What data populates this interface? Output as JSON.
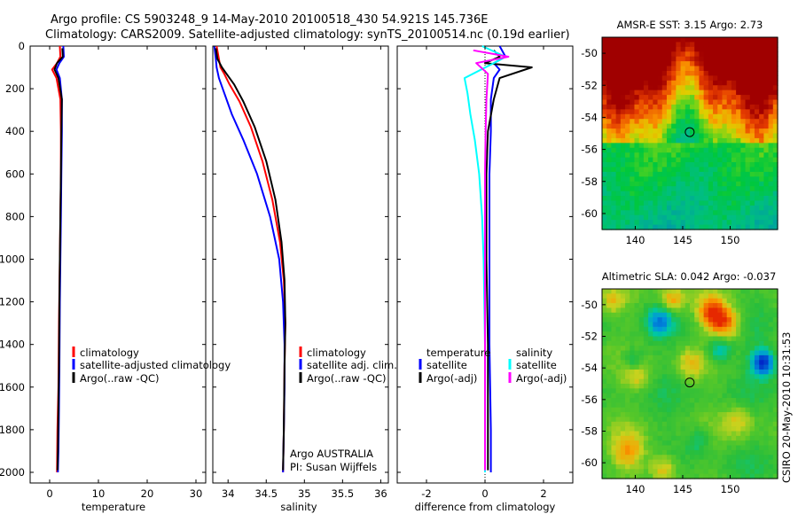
{
  "title": {
    "line1": "Argo profile: CS 5903248_9 14-May-2010 20100518_430 54.921S 145.736E",
    "line2": "Climatology: CARS2009. Satellite-adjusted climatology: synTS_20100514.nc (0.19d earlier)"
  },
  "side_stamp": "CSIRO 20-May-2010 10:31:53",
  "chart_data": [
    {
      "type": "line",
      "id": "temperature",
      "xlabel": "temperature",
      "ylabel": "",
      "xlim": [
        -4,
        32
      ],
      "ylim": [
        2050,
        0
      ],
      "x_ticks": [
        0,
        10,
        20,
        30
      ],
      "y_ticks": [
        0,
        200,
        400,
        600,
        800,
        1000,
        1200,
        1400,
        1600,
        1800,
        2000
      ],
      "legend": [
        "climatology",
        "satellite-adjusted climatology",
        "Argo(..raw -QC)"
      ],
      "series": [
        {
          "name": "climatology",
          "color": "#ff0000",
          "x": [
            2.1,
            2.2,
            1.5,
            0.5,
            1.4,
            2.2,
            2.3,
            2.3,
            2.2,
            2.1,
            1.9,
            1.8,
            1.6,
            1.5
          ],
          "y": [
            0,
            50,
            80,
            110,
            150,
            250,
            400,
            600,
            800,
            1000,
            1300,
            1600,
            1800,
            2000
          ]
        },
        {
          "name": "satellite-adjusted climatology",
          "color": "#0000ff",
          "x": [
            2.8,
            2.9,
            2.0,
            1.4,
            2.1,
            2.5,
            2.5,
            2.4,
            2.3,
            2.2,
            2.1,
            2.0,
            1.9,
            1.8,
            1.7
          ],
          "y": [
            0,
            50,
            80,
            110,
            150,
            250,
            400,
            600,
            800,
            1000,
            1200,
            1500,
            1700,
            1900,
            2000
          ]
        },
        {
          "name": "Argo(..raw -QC)",
          "color": "#000000",
          "x": [
            2.6,
            2.7,
            1.5,
            1.0,
            1.8,
            2.5,
            2.4,
            2.3,
            2.2,
            2.1,
            2.0,
            1.9,
            1.8,
            1.7,
            1.6
          ],
          "y": [
            10,
            50,
            80,
            110,
            150,
            250,
            400,
            600,
            800,
            1000,
            1200,
            1500,
            1700,
            1900,
            1990
          ]
        }
      ]
    },
    {
      "type": "line",
      "id": "salinity",
      "xlabel": "salinity",
      "ylabel": "",
      "xlim": [
        33.8,
        36.1
      ],
      "ylim": [
        2050,
        0
      ],
      "x_ticks": [
        "34",
        "34.5",
        "35",
        "35.5",
        "36"
      ],
      "legend": [
        "climatology",
        "satellite adj. clim.",
        "Argo(..raw -QC)"
      ],
      "annotation": [
        "Argo AUSTRALIA",
        "PI: Susan Wijffels"
      ],
      "series": [
        {
          "name": "climatology",
          "color": "#ff0000",
          "x": [
            33.85,
            33.88,
            33.9,
            33.95,
            34.02,
            34.15,
            34.3,
            34.45,
            34.58,
            34.68,
            34.73,
            34.75,
            34.74,
            34.73,
            34.72
          ],
          "y": [
            0,
            60,
            100,
            130,
            180,
            260,
            380,
            540,
            720,
            920,
            1100,
            1300,
            1500,
            1800,
            2000
          ]
        },
        {
          "name": "satellite adj. clim.",
          "color": "#0000ff",
          "x": [
            33.82,
            33.84,
            33.85,
            33.88,
            33.95,
            34.05,
            34.2,
            34.38,
            34.55,
            34.67,
            34.72,
            34.74,
            34.74,
            34.73,
            34.72
          ],
          "y": [
            0,
            60,
            100,
            150,
            220,
            320,
            440,
            600,
            800,
            1000,
            1200,
            1400,
            1600,
            1800,
            2000
          ]
        },
        {
          "name": "Argo(..raw -QC)",
          "color": "#000000",
          "x": [
            33.84,
            33.86,
            33.92,
            33.98,
            34.08,
            34.2,
            34.35,
            34.5,
            34.62,
            34.7,
            34.74,
            34.75,
            34.74,
            34.73,
            34.72
          ],
          "y": [
            10,
            60,
            100,
            130,
            180,
            260,
            380,
            540,
            720,
            920,
            1100,
            1300,
            1500,
            1800,
            1990
          ]
        }
      ]
    },
    {
      "type": "line",
      "id": "difference",
      "xlabel": "difference from climatology",
      "ylabel": "",
      "xlim": [
        -3,
        3
      ],
      "ylim": [
        2050,
        0
      ],
      "x_ticks": [
        -2,
        0,
        2
      ],
      "legend_groups": [
        {
          "title": "temperature",
          "entries": [
            "satellite",
            "Argo(-adj)"
          ]
        },
        {
          "title": "salinity",
          "entries": [
            "satellite",
            "Argo(-adj)"
          ]
        }
      ],
      "series": [
        {
          "name": "temperature satellite",
          "color": "#0000ff",
          "x": [
            0.5,
            0.7,
            0.3,
            0.5,
            0.3,
            0.2,
            0.2,
            0.15,
            0.15,
            0.15,
            0.15,
            0.2,
            0.2
          ],
          "y": [
            0,
            50,
            80,
            110,
            150,
            250,
            400,
            600,
            800,
            1000,
            1400,
            1800,
            2000
          ]
        },
        {
          "name": "temperature Argo(-adj)",
          "color": "#000000",
          "x": [
            0.3,
            0.5,
            0.0,
            1.6,
            0.5,
            0.3,
            0.1,
            0.05,
            0.05,
            0.05,
            0.1,
            0.1,
            0.1
          ],
          "y": [
            20,
            50,
            80,
            100,
            150,
            250,
            400,
            600,
            800,
            1000,
            1400,
            1800,
            1990
          ]
        },
        {
          "name": "salinity satellite",
          "color": "#00ffff",
          "x": [
            -0.1,
            0.7,
            0.3,
            -0.7,
            -0.6,
            -0.5,
            -0.35,
            -0.2,
            -0.1,
            -0.05,
            0.0,
            0.0,
            0.0
          ],
          "y": [
            0,
            50,
            80,
            150,
            220,
            320,
            440,
            600,
            800,
            1000,
            1400,
            1800,
            2000
          ]
        },
        {
          "name": "salinity Argo(-adj)",
          "color": "#ff00ff",
          "x": [
            -0.4,
            0.8,
            -0.3,
            0.1,
            0.05,
            0.02,
            0.0,
            0.0,
            0.0,
            0.0
          ],
          "y": [
            20,
            50,
            80,
            130,
            250,
            400,
            600,
            900,
            1300,
            1990
          ]
        }
      ]
    },
    {
      "type": "heatmap",
      "id": "sst",
      "title": "AMSR-E SST: 3.15 Argo: 2.73",
      "xlim": [
        136.5,
        155
      ],
      "ylim": [
        -61,
        -49
      ],
      "x_ticks": [
        140,
        145,
        150
      ],
      "y_ticks": [
        -50,
        -52,
        -54,
        -56,
        -58,
        -60
      ],
      "marker": {
        "lon": 145.736,
        "lat": -54.921
      }
    },
    {
      "type": "heatmap",
      "id": "sla",
      "title": "Altimetric SLA: 0.042 Argo: -0.037",
      "xlim": [
        136.5,
        155
      ],
      "ylim": [
        -61,
        -49
      ],
      "x_ticks": [
        140,
        145,
        150
      ],
      "y_ticks": [
        -50,
        -52,
        -54,
        -56,
        -58,
        -60
      ],
      "marker": {
        "lon": 145.736,
        "lat": -54.921
      }
    }
  ]
}
